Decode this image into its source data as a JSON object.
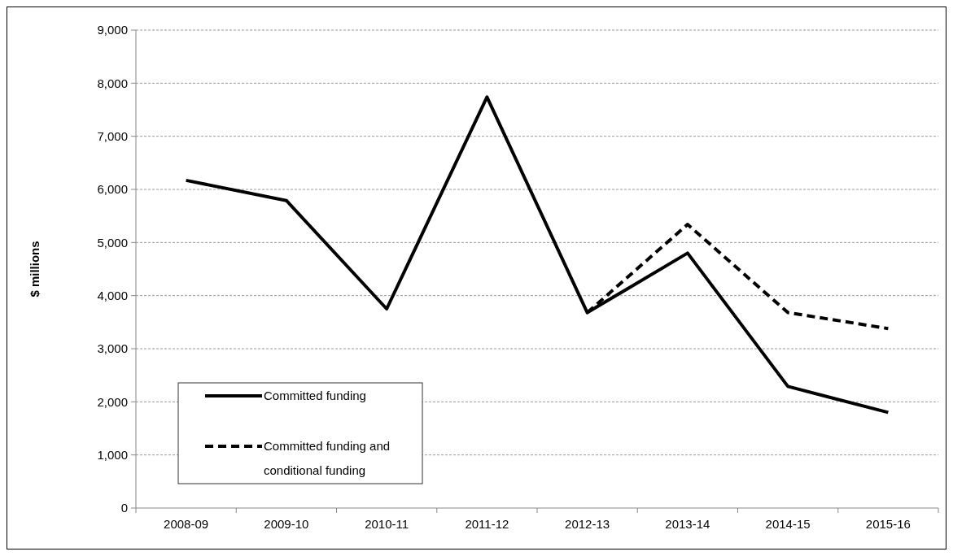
{
  "chart_data": {
    "type": "line",
    "ylabel": "$ millions",
    "categories": [
      "2008-09",
      "2009-10",
      "2010-11",
      "2011-12",
      "2012-13",
      "2013-14",
      "2014-15",
      "2015-16"
    ],
    "series": [
      {
        "name": "Committed funding",
        "color": "#000000",
        "line_style": "solid",
        "values": [
          6170,
          5790,
          3750,
          7740,
          3680,
          4800,
          2290,
          1800
        ]
      },
      {
        "name": "Committed funding and conditional funding",
        "color": "#000000",
        "line_style": "dashed",
        "values": [
          null,
          null,
          null,
          null,
          3680,
          5340,
          3680,
          3380
        ]
      }
    ],
    "ylim": [
      0,
      9000
    ],
    "yticks": [
      {
        "value": 0,
        "label": "0"
      },
      {
        "value": 1000,
        "label": "1,000"
      },
      {
        "value": 2000,
        "label": "2,000"
      },
      {
        "value": 3000,
        "label": "3,000"
      },
      {
        "value": 4000,
        "label": "4,000"
      },
      {
        "value": 5000,
        "label": "5,000"
      },
      {
        "value": 6000,
        "label": "6,000"
      },
      {
        "value": 7000,
        "label": "7,000"
      },
      {
        "value": 8000,
        "label": "8,000"
      },
      {
        "value": 9000,
        "label": "9,000"
      }
    ],
    "grid": "y",
    "legend": "bottom left"
  }
}
